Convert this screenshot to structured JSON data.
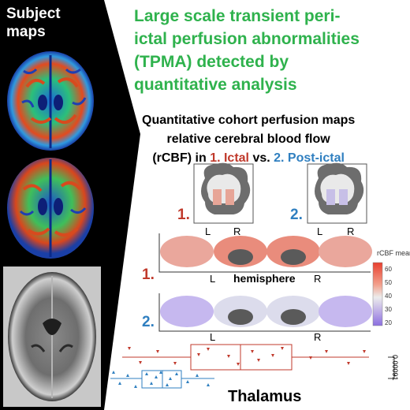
{
  "subject": {
    "label": "Subject maps"
  },
  "headline": {
    "lines": [
      "Large scale transient peri-",
      "ictal perfusion abnormalities",
      "(TPMA) detected by",
      "quantitative analysis"
    ]
  },
  "cohort": {
    "line1": "Quantitative cohort perfusion maps",
    "line2": "relative cerebral blood flow",
    "line3_prefix": "(rCBF) in ",
    "ictal": "1. Ictal",
    "vs": " vs. ",
    "postictal": "2. Post-ictal"
  },
  "labels": {
    "num1": "1.",
    "num2": "2.",
    "L": "L",
    "R": "R",
    "hemisphere": "hemisphere",
    "thalamus": "Thalamus",
    "pvalue": "0.00091"
  },
  "legend": {
    "title": "rCBF mean",
    "ticks": [
      "60",
      "50",
      "40",
      "30",
      "20"
    ]
  },
  "colors": {
    "green": "#2fb24d",
    "ictal_red": "#c0392b",
    "postictal_blue": "#2f7fc0"
  }
}
